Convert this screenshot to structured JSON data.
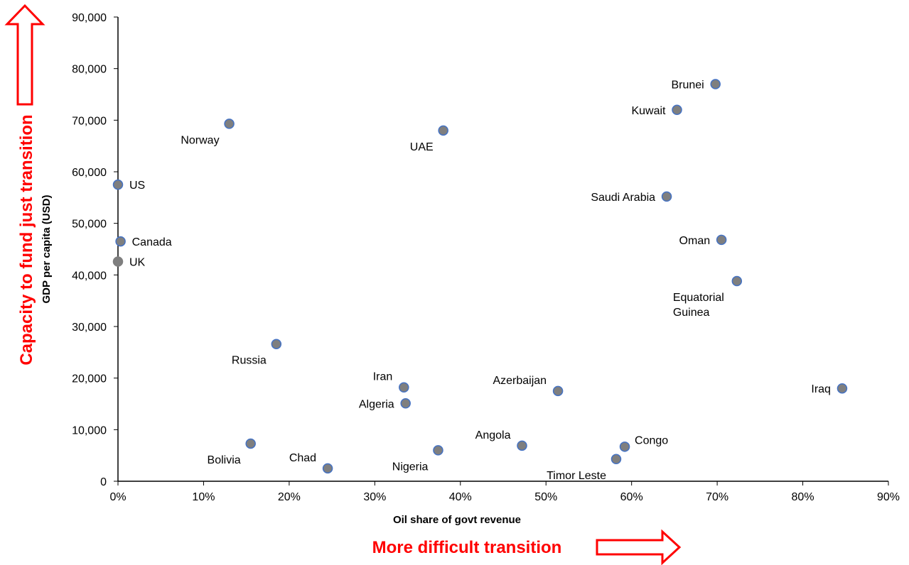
{
  "chart_data": {
    "type": "scatter",
    "title": "",
    "xlabel": "Oil share of govt revenue",
    "ylabel": "GDP per capita  (USD)",
    "xlim": [
      0,
      0.9
    ],
    "ylim": [
      0,
      90000
    ],
    "x_ticks": [
      0,
      0.1,
      0.2,
      0.3,
      0.4,
      0.5,
      0.6,
      0.7,
      0.8,
      0.9
    ],
    "x_tick_labels": [
      "0%",
      "10%",
      "20%",
      "30%",
      "40%",
      "50%",
      "60%",
      "70%",
      "80%",
      "90%"
    ],
    "y_ticks": [
      0,
      10000,
      20000,
      30000,
      40000,
      50000,
      60000,
      70000,
      80000,
      90000
    ],
    "y_tick_labels": [
      "0",
      "10,000",
      "20,000",
      "30,000",
      "40,000",
      "50,000",
      "60,000",
      "70,000",
      "80,000",
      "90,000"
    ],
    "grid": false,
    "legend": "none",
    "points": [
      {
        "name": "Brunei",
        "x": 0.698,
        "y": 77000,
        "label_side": "left",
        "highlight": false
      },
      {
        "name": "Kuwait",
        "x": 0.653,
        "y": 72000,
        "label_side": "left",
        "highlight": false
      },
      {
        "name": "Norway",
        "x": 0.13,
        "y": 69300,
        "label_side": "below-left",
        "highlight": false
      },
      {
        "name": "UAE",
        "x": 0.38,
        "y": 68000,
        "label_side": "below-left",
        "highlight": false
      },
      {
        "name": "US",
        "x": 0.0,
        "y": 57500,
        "label_side": "right",
        "highlight": false
      },
      {
        "name": "Saudi Arabia",
        "x": 0.641,
        "y": 55200,
        "label_side": "left",
        "highlight": false
      },
      {
        "name": "Oman",
        "x": 0.705,
        "y": 46800,
        "label_side": "left",
        "highlight": false
      },
      {
        "name": "Canada",
        "x": 0.003,
        "y": 46500,
        "label_side": "right",
        "highlight": false
      },
      {
        "name": "UK",
        "x": 0.0,
        "y": 42600,
        "label_side": "right",
        "highlight": true
      },
      {
        "name": "Equatorial Guinea",
        "x": 0.723,
        "y": 38800,
        "label_side": "below-left",
        "highlight": false
      },
      {
        "name": "Russia",
        "x": 0.185,
        "y": 26600,
        "label_side": "below-left",
        "highlight": false
      },
      {
        "name": "Iran",
        "x": 0.334,
        "y": 18200,
        "label_side": "above-left",
        "highlight": false
      },
      {
        "name": "Iraq",
        "x": 0.846,
        "y": 18000,
        "label_side": "left",
        "highlight": false
      },
      {
        "name": "Azerbaijan",
        "x": 0.514,
        "y": 17500,
        "label_side": "above-left",
        "highlight": false
      },
      {
        "name": "Algeria",
        "x": 0.336,
        "y": 15100,
        "label_side": "left",
        "highlight": false
      },
      {
        "name": "Bolivia",
        "x": 0.155,
        "y": 7300,
        "label_side": "below-left",
        "highlight": false
      },
      {
        "name": "Angola",
        "x": 0.472,
        "y": 6900,
        "label_side": "above-left",
        "highlight": false
      },
      {
        "name": "Congo",
        "x": 0.592,
        "y": 6700,
        "label_side": "above-right",
        "highlight": false
      },
      {
        "name": "Nigeria",
        "x": 0.374,
        "y": 6000,
        "label_side": "below-left",
        "highlight": false
      },
      {
        "name": "Timor Leste",
        "x": 0.582,
        "y": 4300,
        "label_side": "below-left",
        "highlight": false
      },
      {
        "name": "Chad",
        "x": 0.245,
        "y": 2500,
        "label_side": "above-left",
        "highlight": false
      }
    ],
    "annotations": {
      "y_arrow_text": "Capacity to fund just transition",
      "x_arrow_text": "More difficult transition"
    },
    "colors": {
      "marker_fill": "#7f7f7f",
      "marker_stroke": "#4472c4",
      "highlight_fill": "#7f7f7f",
      "highlight_stroke": "#7f7f7f",
      "annotation": "#ff0000",
      "axis": "#000000"
    }
  }
}
